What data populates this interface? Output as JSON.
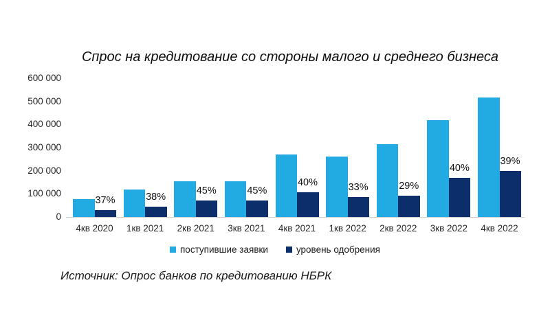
{
  "chart_data": {
    "type": "bar",
    "title": "Спрос на кредитование со стороны малого и среднего бизнеса",
    "categories": [
      "4кв 2020",
      "1кв 2021",
      "2кв 2021",
      "3кв 2021",
      "4кв 2021",
      "1кв 2022",
      "2кв 2022",
      "3кв 2022",
      "4кв 2022"
    ],
    "series": [
      {
        "name": "поступившие заявки",
        "color": "#22aae2",
        "values": [
          78000,
          120000,
          155000,
          155000,
          270000,
          262000,
          315000,
          420000,
          517000
        ]
      },
      {
        "name": "уровень одобрения",
        "color": "#0c2e6a",
        "values": [
          29000,
          46000,
          70000,
          70000,
          108000,
          86000,
          91000,
          168000,
          200000
        ],
        "point_labels": [
          "37%",
          "38%",
          "45%",
          "45%",
          "40%",
          "33%",
          "29%",
          "40%",
          "39%"
        ]
      }
    ],
    "xlabel": "",
    "ylabel": "",
    "ylim": [
      0,
      600000
    ],
    "y_tick_labels": [
      "600 000",
      "500 000",
      "400 000",
      "300 000",
      "200 000",
      "100 000",
      "0"
    ],
    "grid": false,
    "legend_position": "bottom",
    "axis_line_color": "#d0d0d0",
    "source": "Источник: Опрос банков по кредитованию НБРК"
  }
}
